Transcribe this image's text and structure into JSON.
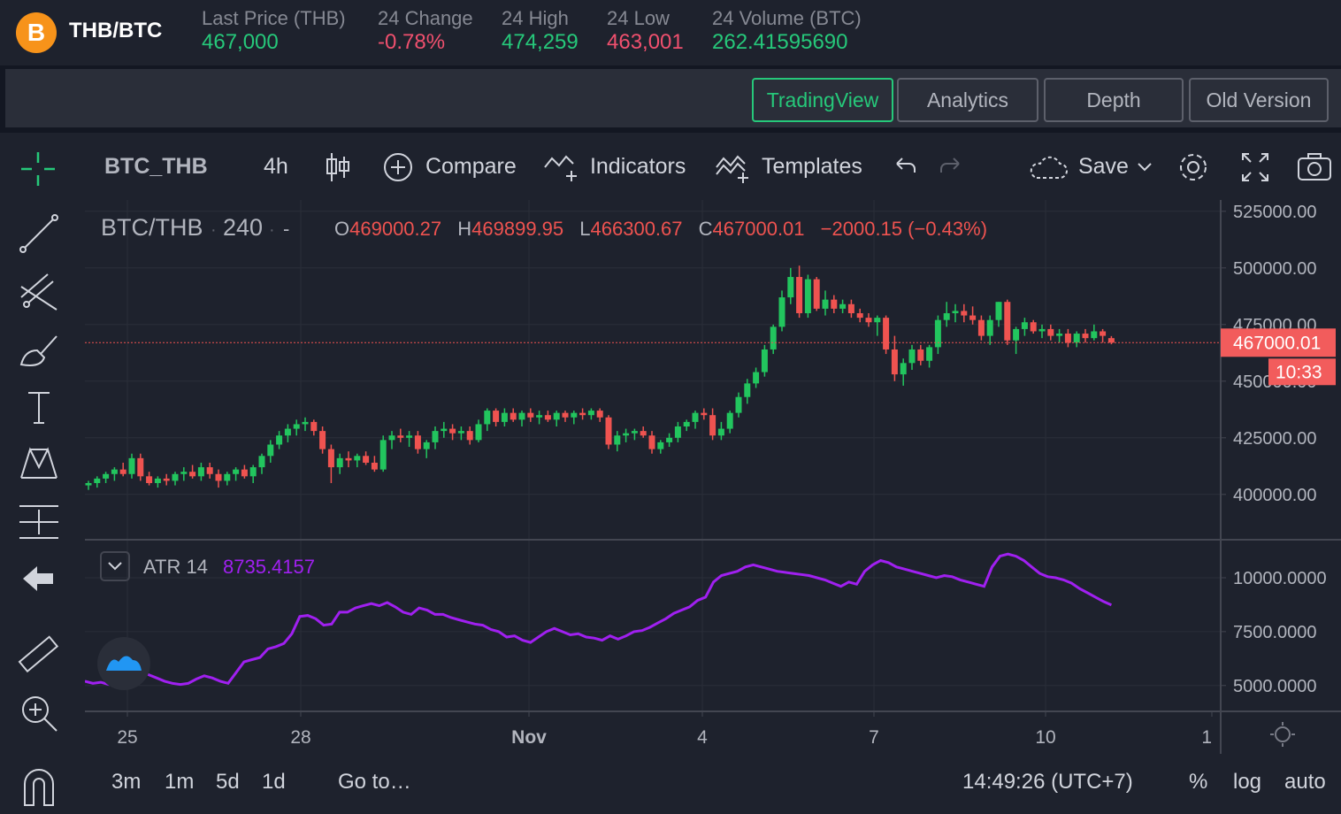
{
  "header": {
    "coin_glyph": "B",
    "pair": "THB/BTC",
    "stats": [
      {
        "label": "Last Price (THB)",
        "value": "467,000",
        "color": "green"
      },
      {
        "label": "24 Change",
        "value": "-0.78%",
        "color": "red"
      },
      {
        "label": "24 High",
        "value": "474,259",
        "color": "green"
      },
      {
        "label": "24 Low",
        "value": "463,001",
        "color": "red"
      },
      {
        "label": "24 Volume (BTC)",
        "value": "262.41595690",
        "color": "green"
      }
    ]
  },
  "tabs": [
    {
      "label": "TradingView",
      "active": true
    },
    {
      "label": "Analytics",
      "active": false
    },
    {
      "label": "Depth",
      "active": false
    },
    {
      "label": "Old Version",
      "active": false
    }
  ],
  "toolbar": {
    "symbol": "BTC_THB",
    "interval": "4h",
    "compare": "Compare",
    "indicators": "Indicators",
    "templates": "Templates",
    "save": "Save"
  },
  "legend": {
    "symbol": "BTC/THB",
    "interval": "240",
    "sep": "·",
    "dash": "-",
    "o_label": "O",
    "o": "469000.27",
    "h_label": "H",
    "h": "469899.95",
    "l_label": "L",
    "l": "466300.67",
    "c_label": "C",
    "c": "467000.01",
    "change": "−2000.15 (−0.43%)"
  },
  "price_axis": {
    "ticks": [
      "525000.00",
      "500000.00",
      "475000.00",
      "450000.00",
      "425000.00",
      "400000.00"
    ],
    "last_price": "467000.01",
    "countdown": "10:33"
  },
  "atr": {
    "label": "ATR 14",
    "value": "8735.4157",
    "ticks": [
      "10000.0000",
      "7500.0000",
      "5000.0000"
    ]
  },
  "time_axis": {
    "labels": [
      "25",
      "28",
      "Nov",
      "4",
      "7",
      "10",
      "1"
    ]
  },
  "bottom": {
    "ranges": [
      "3m",
      "1m",
      "5d",
      "1d"
    ],
    "goto": "Go to…",
    "clock": "14:49:26 (UTC+7)",
    "percent": "%",
    "log": "log",
    "auto": "auto"
  },
  "colors": {
    "up": "#26a69a",
    "up_bright": "#22c55e",
    "down": "#ef5350",
    "atr": "#a020f0",
    "accent": "#26c87a",
    "price_label_bg": "#f25c5c"
  },
  "chart_data": [
    {
      "type": "candlestick",
      "title": "BTC/THB",
      "interval": "240",
      "x_labels": [
        "25",
        "28",
        "Nov",
        "4",
        "7",
        "10"
      ],
      "ylim": [
        380000,
        530000
      ],
      "series": [
        {
          "name": "BTC/THB",
          "ohlc": [
            [
              404000,
              406000,
              402000,
              405000
            ],
            [
              405000,
              408000,
              403000,
              407000
            ],
            [
              407000,
              410000,
              405000,
              409000
            ],
            [
              409000,
              412000,
              406000,
              411000
            ],
            [
              411000,
              414000,
              408000,
              409000
            ],
            [
              409000,
              418000,
              407000,
              416000
            ],
            [
              416000,
              418000,
              406000,
              408000
            ],
            [
              408000,
              410000,
              404000,
              405000
            ],
            [
              405000,
              408000,
              403000,
              407000
            ],
            [
              407000,
              409000,
              404000,
              406000
            ],
            [
              406000,
              410000,
              404000,
              409000
            ],
            [
              409000,
              412000,
              406000,
              410000
            ],
            [
              410000,
              413000,
              407000,
              408000
            ],
            [
              408000,
              414000,
              406000,
              412000
            ],
            [
              412000,
              414000,
              407000,
              409000
            ],
            [
              409000,
              411000,
              403000,
              406000
            ],
            [
              406000,
              410000,
              404000,
              409000
            ],
            [
              409000,
              412000,
              406000,
              411000
            ],
            [
              411000,
              413000,
              407000,
              408000
            ],
            [
              408000,
              413000,
              405000,
              412000
            ],
            [
              412000,
              418000,
              409000,
              417000
            ],
            [
              417000,
              424000,
              414000,
              422000
            ],
            [
              422000,
              428000,
              420000,
              426000
            ],
            [
              426000,
              431000,
              423000,
              429000
            ],
            [
              429000,
              433000,
              426000,
              431000
            ],
            [
              431000,
              434000,
              428000,
              432000
            ],
            [
              432000,
              433000,
              426000,
              428000
            ],
            [
              428000,
              430000,
              418000,
              420000
            ],
            [
              420000,
              422000,
              405000,
              412000
            ],
            [
              412000,
              418000,
              409000,
              416000
            ],
            [
              416000,
              419000,
              412000,
              415000
            ],
            [
              415000,
              418000,
              412000,
              417000
            ],
            [
              417000,
              419000,
              413000,
              414000
            ],
            [
              414000,
              417000,
              410000,
              411000
            ],
            [
              411000,
              426000,
              410000,
              424000
            ],
            [
              424000,
              428000,
              420000,
              426000
            ],
            [
              426000,
              429000,
              423000,
              425000
            ],
            [
              425000,
              428000,
              421000,
              426000
            ],
            [
              426000,
              428000,
              418000,
              420000
            ],
            [
              420000,
              424000,
              416000,
              423000
            ],
            [
              423000,
              430000,
              420000,
              428000
            ],
            [
              428000,
              432000,
              425000,
              429000
            ],
            [
              429000,
              431000,
              424000,
              427000
            ],
            [
              427000,
              430000,
              424000,
              428000
            ],
            [
              428000,
              430000,
              422000,
              424000
            ],
            [
              424000,
              433000,
              423000,
              431000
            ],
            [
              431000,
              438000,
              428000,
              437000
            ],
            [
              437000,
              438000,
              430000,
              432000
            ],
            [
              432000,
              438000,
              430000,
              436000
            ],
            [
              436000,
              438000,
              432000,
              433000
            ],
            [
              433000,
              437000,
              430000,
              436000
            ],
            [
              436000,
              438000,
              432000,
              434000
            ],
            [
              434000,
              437000,
              431000,
              435000
            ],
            [
              435000,
              437000,
              432000,
              433000
            ],
            [
              433000,
              437000,
              430000,
              436000
            ],
            [
              436000,
              437000,
              432000,
              434000
            ],
            [
              434000,
              437000,
              431000,
              436000
            ],
            [
              436000,
              438000,
              433000,
              435000
            ],
            [
              435000,
              438000,
              433000,
              437000
            ],
            [
              437000,
              438000,
              432000,
              434000
            ],
            [
              434000,
              435000,
              420000,
              422000
            ],
            [
              422000,
              428000,
              419000,
              426000
            ],
            [
              426000,
              429000,
              423000,
              427000
            ],
            [
              427000,
              429000,
              424000,
              428000
            ],
            [
              428000,
              430000,
              425000,
              426000
            ],
            [
              426000,
              428000,
              418000,
              420000
            ],
            [
              420000,
              424000,
              418000,
              423000
            ],
            [
              423000,
              427000,
              421000,
              425000
            ],
            [
              425000,
              432000,
              423000,
              430000
            ],
            [
              430000,
              433000,
              428000,
              432000
            ],
            [
              432000,
              437000,
              429000,
              436000
            ],
            [
              436000,
              438000,
              433000,
              435000
            ],
            [
              435000,
              438000,
              424000,
              426000
            ],
            [
              426000,
              432000,
              424000,
              429000
            ],
            [
              429000,
              437000,
              427000,
              436000
            ],
            [
              436000,
              445000,
              434000,
              443000
            ],
            [
              443000,
              451000,
              440000,
              449000
            ],
            [
              449000,
              456000,
              447000,
              454000
            ],
            [
              454000,
              466000,
              452000,
              464000
            ],
            [
              464000,
              475000,
              462000,
              474000
            ],
            [
              474000,
              490000,
              472000,
              487000
            ],
            [
              487000,
              500000,
              484000,
              496000
            ],
            [
              496000,
              501000,
              478000,
              480000
            ],
            [
              480000,
              497000,
              478000,
              495000
            ],
            [
              495000,
              496000,
              481000,
              482000
            ],
            [
              482000,
              490000,
              479000,
              486000
            ],
            [
              486000,
              488000,
              480000,
              482000
            ],
            [
              482000,
              486000,
              480000,
              484000
            ],
            [
              484000,
              486000,
              478000,
              480000
            ],
            [
              480000,
              482000,
              476000,
              478000
            ],
            [
              478000,
              480000,
              474000,
              476000
            ],
            [
              476000,
              479000,
              470000,
              478000
            ],
            [
              478000,
              479000,
              462000,
              464000
            ],
            [
              464000,
              470000,
              450000,
              453000
            ],
            [
              453000,
              460000,
              448000,
              458000
            ],
            [
              458000,
              466000,
              455000,
              464000
            ],
            [
              464000,
              466000,
              457000,
              459000
            ],
            [
              459000,
              466000,
              456000,
              465000
            ],
            [
              465000,
              479000,
              462000,
              477000
            ],
            [
              477000,
              485000,
              474000,
              480000
            ],
            [
              480000,
              484000,
              476000,
              481000
            ],
            [
              481000,
              484000,
              476000,
              479000
            ],
            [
              479000,
              483000,
              475000,
              477000
            ],
            [
              477000,
              479000,
              468000,
              470000
            ],
            [
              470000,
              479000,
              466000,
              477000
            ],
            [
              477000,
              485000,
              474000,
              485000
            ],
            [
              485000,
              486000,
              466000,
              468000
            ],
            [
              468000,
              474000,
              462000,
              473000
            ],
            [
              473000,
              478000,
              470000,
              476000
            ],
            [
              476000,
              477000,
              471000,
              472000
            ],
            [
              472000,
              475000,
              469000,
              473000
            ],
            [
              473000,
              475000,
              468000,
              470000
            ],
            [
              470000,
              473000,
              467000,
              471000
            ],
            [
              471000,
              473000,
              465000,
              467000
            ],
            [
              467000,
              472000,
              465000,
              471000
            ],
            [
              471000,
              473000,
              467000,
              469000
            ],
            [
              469000,
              475000,
              468000,
              472000
            ],
            [
              472000,
              473000,
              467000,
              470000
            ],
            [
              469000,
              469900,
              466300,
              467000
            ]
          ]
        }
      ]
    },
    {
      "type": "line",
      "title": "ATR 14",
      "ylim": [
        3800,
        11600
      ],
      "series": [
        {
          "name": "ATR 14",
          "values": [
            5200,
            5100,
            5150,
            5050,
            5000,
            5150,
            5700,
            5750,
            5500,
            5350,
            5200,
            5100,
            5050,
            5100,
            5300,
            5450,
            5350,
            5200,
            5100,
            5600,
            6100,
            6200,
            6300,
            6700,
            6800,
            6950,
            7400,
            8200,
            8250,
            8100,
            7800,
            7850,
            8400,
            8400,
            8600,
            8700,
            8800,
            8700,
            8850,
            8650,
            8400,
            8300,
            8600,
            8500,
            8300,
            8300,
            8150,
            8050,
            7950,
            7850,
            7800,
            7600,
            7500,
            7250,
            7300,
            7100,
            7000,
            7250,
            7500,
            7650,
            7500,
            7350,
            7400,
            7250,
            7200,
            7100,
            7300,
            7150,
            7300,
            7500,
            7550,
            7700,
            7900,
            8100,
            8350,
            8500,
            8650,
            8950,
            9100,
            9800,
            10100,
            10200,
            10300,
            10500,
            10600,
            10500,
            10400,
            10300,
            10250,
            10200,
            10150,
            10100,
            10000,
            9900,
            9750,
            9600,
            9800,
            9700,
            10300,
            10600,
            10800,
            10700,
            10500,
            10400,
            10300,
            10200,
            10100,
            10000,
            10100,
            10050,
            9900,
            9800,
            9700,
            9600,
            10500,
            11000,
            11100,
            11000,
            10800,
            10500,
            10200,
            10050,
            10000,
            9900,
            9750,
            9500,
            9300,
            9100,
            8900,
            8735
          ]
        }
      ]
    }
  ]
}
